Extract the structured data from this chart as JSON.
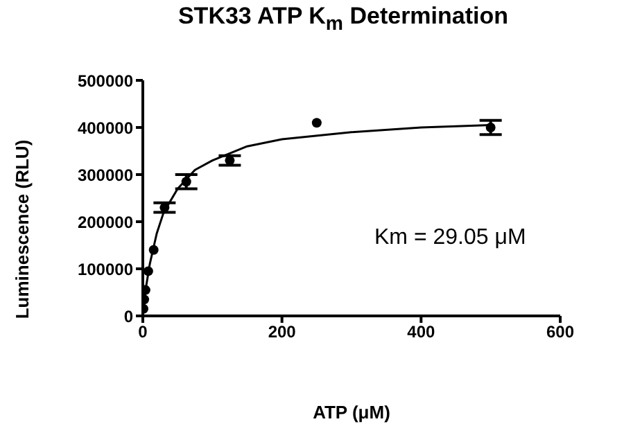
{
  "chart_data": {
    "type": "scatter",
    "title": "STK33 ATP K$_{m}$ Determination",
    "xlabel": "ATP (μM)",
    "ylabel": "Luminescence (RLU)",
    "xlim": [
      0,
      600
    ],
    "xticks": [
      0,
      200,
      400,
      600
    ],
    "ylim": [
      0,
      500000
    ],
    "yticks": [
      0,
      100000,
      200000,
      300000,
      400000,
      500000
    ],
    "grid": false,
    "marker": "circle",
    "annotations": [
      "Km = 29.05 μM"
    ],
    "series": [
      {
        "color": "#000000",
        "x": [
          1,
          2,
          3.9,
          7.8,
          15.6,
          31.25,
          62.5,
          125,
          250,
          500
        ],
        "values": [
          15000,
          35000,
          55000,
          95000,
          140000,
          230000,
          285000,
          330000,
          410000,
          400000
        ],
        "errors": [
          null,
          null,
          null,
          null,
          null,
          10000,
          15000,
          10000,
          null,
          15000
        ]
      },
      {
        "type": "line",
        "color": "#000000",
        "marker": "none",
        "x": [
          0,
          5,
          10,
          20,
          30,
          50,
          75,
          100,
          150,
          200,
          300,
          400,
          500
        ],
        "values": [
          0,
          65000,
          110000,
          175000,
          220000,
          270000,
          310000,
          330000,
          360000,
          375000,
          390000,
          400000,
          405000
        ]
      }
    ]
  }
}
